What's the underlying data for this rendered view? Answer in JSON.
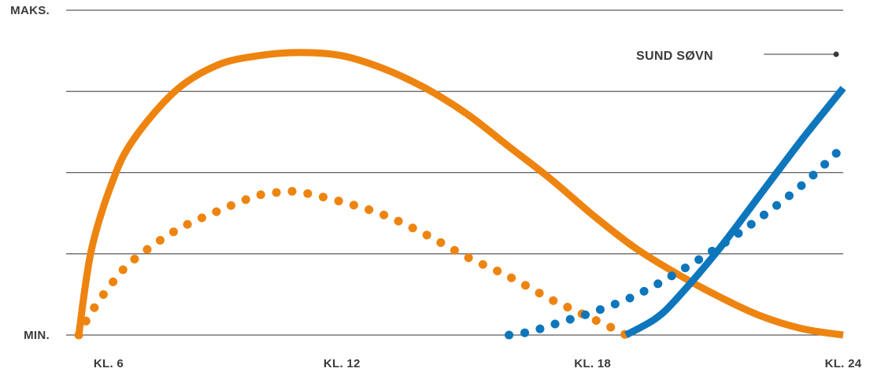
{
  "chart_data": {
    "type": "line",
    "title": "",
    "xlabel": "",
    "ylabel": "",
    "x_ticks": [
      {
        "x": 6,
        "label": "KL. 6"
      },
      {
        "x": 12,
        "label": "KL. 12"
      },
      {
        "x": 18,
        "label": "KL. 18"
      },
      {
        "x": 24,
        "label": "KL. 24"
      }
    ],
    "y_ticks": [
      {
        "y": 0,
        "label": "MIN."
      },
      {
        "y": 1,
        "label": "MAKS."
      }
    ],
    "xlim": [
      5.7,
      24
    ],
    "ylim": [
      0,
      1
    ],
    "grid": true,
    "grid_levels": [
      0,
      0.25,
      0.5,
      0.75,
      1
    ],
    "legend": {
      "position": "top-right",
      "label": "SUND SØVN"
    },
    "series": [
      {
        "style": "solid",
        "color": "#EE8410",
        "points": [
          [
            5.7,
            0
          ],
          [
            6.0,
            0.26
          ],
          [
            6.5,
            0.47
          ],
          [
            7.0,
            0.6
          ],
          [
            8.0,
            0.75
          ],
          [
            9.0,
            0.83
          ],
          [
            10.0,
            0.86
          ],
          [
            11.0,
            0.87
          ],
          [
            12.0,
            0.86
          ],
          [
            13.0,
            0.82
          ],
          [
            14.0,
            0.76
          ],
          [
            15.0,
            0.68
          ],
          [
            16.0,
            0.58
          ],
          [
            17.0,
            0.48
          ],
          [
            18.0,
            0.37
          ],
          [
            19.0,
            0.27
          ],
          [
            20.0,
            0.19
          ],
          [
            21.0,
            0.12
          ],
          [
            22.0,
            0.06
          ],
          [
            23.0,
            0.02
          ],
          [
            24.0,
            0.0
          ]
        ]
      },
      {
        "style": "dotted",
        "color": "#EE8410",
        "points": [
          [
            5.7,
            0
          ],
          [
            6.0,
            0.07
          ],
          [
            6.5,
            0.16
          ],
          [
            7.0,
            0.23
          ],
          [
            8.0,
            0.32
          ],
          [
            9.0,
            0.38
          ],
          [
            10.0,
            0.43
          ],
          [
            10.6,
            0.44
          ],
          [
            11.0,
            0.44
          ],
          [
            12.0,
            0.41
          ],
          [
            13.0,
            0.37
          ],
          [
            14.0,
            0.31
          ],
          [
            15.0,
            0.24
          ],
          [
            16.0,
            0.18
          ],
          [
            17.0,
            0.11
          ],
          [
            17.5,
            0.08
          ],
          [
            18.0,
            0.05
          ],
          [
            18.5,
            0.02
          ],
          [
            18.8,
            0.0
          ]
        ]
      },
      {
        "style": "solid",
        "color": "#0D76BC",
        "points": [
          [
            18.8,
            0
          ],
          [
            19.5,
            0.05
          ],
          [
            20.0,
            0.11
          ],
          [
            21.0,
            0.26
          ],
          [
            22.0,
            0.43
          ],
          [
            23.0,
            0.6
          ],
          [
            24.0,
            0.76
          ]
        ]
      },
      {
        "style": "dotted",
        "color": "#0D76BC",
        "points": [
          [
            16.0,
            0.0
          ],
          [
            16.5,
            0.01
          ],
          [
            17.0,
            0.03
          ],
          [
            17.5,
            0.05
          ],
          [
            18.0,
            0.07
          ],
          [
            19.0,
            0.12
          ],
          [
            20.0,
            0.19
          ],
          [
            21.0,
            0.27
          ],
          [
            22.0,
            0.36
          ],
          [
            23.0,
            0.46
          ],
          [
            24.0,
            0.58
          ]
        ]
      }
    ]
  }
}
